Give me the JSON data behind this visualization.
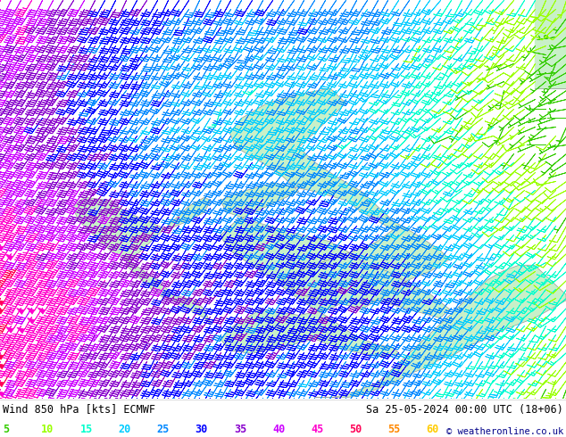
{
  "title_left": "Wind 850 hPa [kts] ECMWF",
  "title_right": "Sa 25-05-2024 00:00 UTC (18+06)",
  "copyright": "© weatheronline.co.uk",
  "legend_values": [
    5,
    10,
    15,
    20,
    25,
    30,
    35,
    40,
    45,
    50,
    55,
    60
  ],
  "legend_colors": [
    "#33cc00",
    "#99ff00",
    "#00ffcc",
    "#00ccff",
    "#0088ff",
    "#0000ff",
    "#8800cc",
    "#cc00ff",
    "#ff00cc",
    "#ff0055",
    "#ff8800",
    "#ffcc00"
  ],
  "bg_color": "#ffffff",
  "land_color": "#c8f0c8",
  "border_color": "#999999",
  "fig_width": 6.34,
  "fig_height": 4.9,
  "dpi": 100,
  "title_fontsize": 8.5,
  "legend_fontsize": 8.5,
  "map_extent": [
    -12.5,
    5.5,
    48.5,
    62.0
  ],
  "barb_density_lon": 55,
  "barb_density_lat": 45
}
